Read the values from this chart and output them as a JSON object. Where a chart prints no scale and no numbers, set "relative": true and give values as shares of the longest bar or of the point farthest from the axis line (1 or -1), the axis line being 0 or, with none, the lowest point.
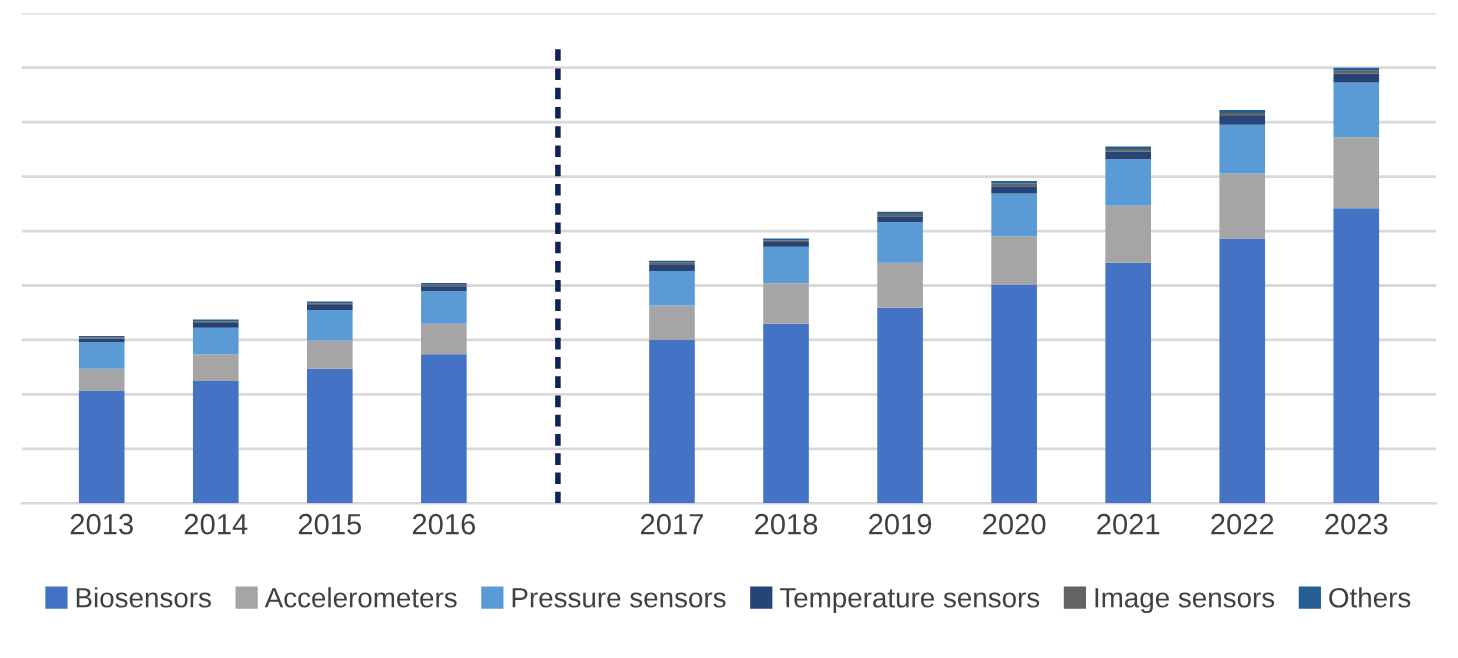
{
  "chart_data": {
    "type": "bar",
    "stacked": true,
    "relative": true,
    "grid": "y",
    "legend": "bottom",
    "categories": [
      "2013",
      "2014",
      "2015",
      "2016",
      null,
      "2017",
      "2018",
      "2019",
      "2020",
      "2021",
      "2022",
      "2023"
    ],
    "series": [
      {
        "name": "Biosensors",
        "color": "#4472c4",
        "values": [
          0.258,
          0.281,
          0.309,
          0.342,
          null,
          0.375,
          0.412,
          0.449,
          0.501,
          0.552,
          0.608,
          0.677
        ]
      },
      {
        "name": "Accelerometers",
        "color": "#a5a5a5",
        "values": [
          0.051,
          0.061,
          0.065,
          0.07,
          null,
          0.079,
          0.093,
          0.103,
          0.112,
          0.131,
          0.149,
          0.163
        ]
      },
      {
        "name": "Pressure sensors",
        "color": "#5b9bd5",
        "values": [
          0.061,
          0.061,
          0.07,
          0.075,
          null,
          0.079,
          0.084,
          0.093,
          0.098,
          0.107,
          0.112,
          0.126
        ]
      },
      {
        "name": "Temperature sensors",
        "color": "#264478",
        "values": [
          0.008,
          0.011,
          0.011,
          0.011,
          null,
          0.014,
          0.011,
          0.014,
          0.017,
          0.017,
          0.02,
          0.02
        ]
      },
      {
        "name": "Image sensors",
        "color": "#636363",
        "values": [
          0.003,
          0.004,
          0.004,
          0.004,
          null,
          0.005,
          0.004,
          0.005,
          0.006,
          0.006,
          0.007,
          0.007
        ]
      },
      {
        "name": "Others",
        "color": "#255e91",
        "values": [
          0.003,
          0.004,
          0.004,
          0.004,
          null,
          0.005,
          0.004,
          0.005,
          0.006,
          0.006,
          0.007,
          0.007
        ]
      }
    ]
  }
}
